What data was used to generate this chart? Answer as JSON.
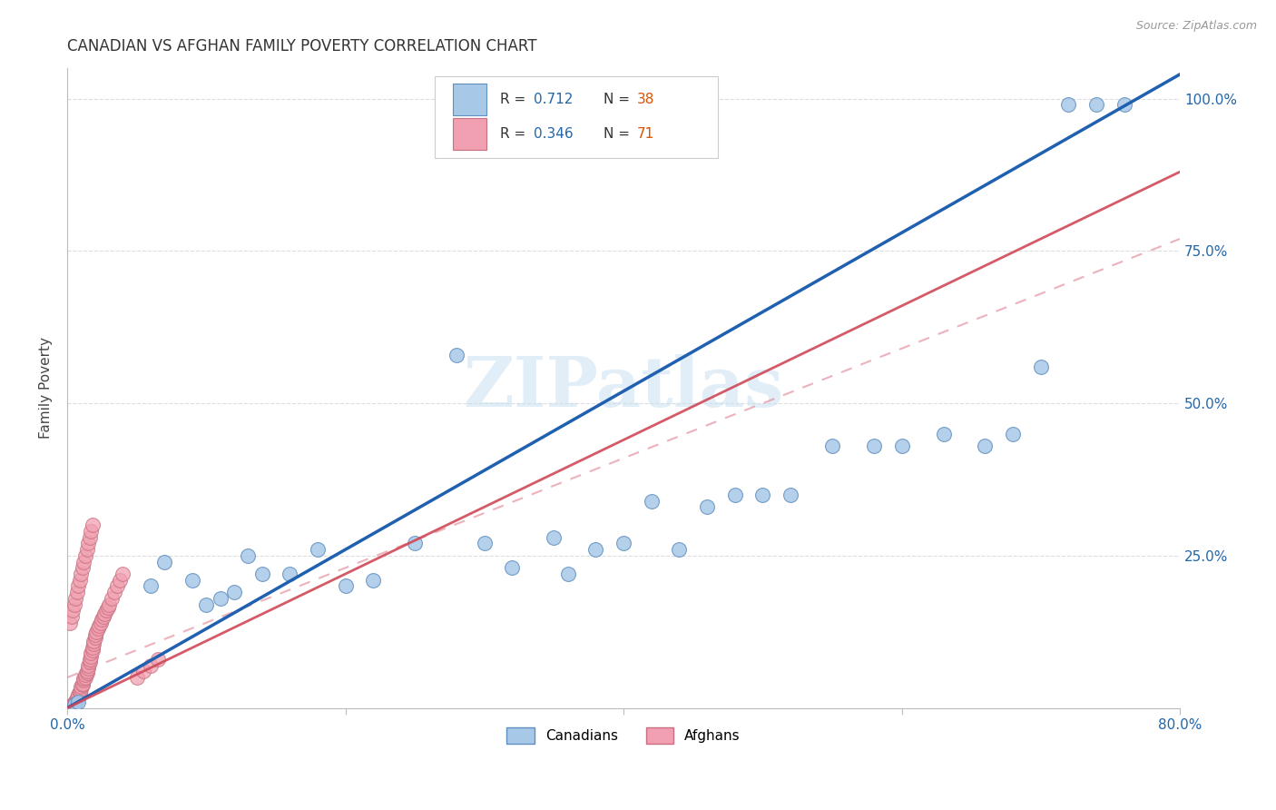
{
  "title": "CANADIAN VS AFGHAN FAMILY POVERTY CORRELATION CHART",
  "source": "Source: ZipAtlas.com",
  "ylabel": "Family Poverty",
  "watermark": "ZIPatlas",
  "legend_blue_label": "Canadians",
  "legend_pink_label": "Afghans",
  "R_blue": "0.712",
  "N_blue": "38",
  "R_pink": "0.346",
  "N_pink": "71",
  "blue_face": "#A8C8E8",
  "blue_edge": "#6090C0",
  "pink_face": "#F0A0B0",
  "pink_edge": "#C87080",
  "blue_line_color": "#2060B0",
  "pink_line_color": "#D04858",
  "pink_dash_color": "#E08090",
  "axis_label_color": "#2166AC",
  "grid_color": "#DDDDDD",
  "title_color": "#333333",
  "blue_text_color": "#2166AC",
  "orange_text_color": "#E05000",
  "legend_border_color": "#CCCCCC",
  "canadians_x": [
    0.005,
    0.008,
    0.06,
    0.1,
    0.12,
    0.07,
    0.09,
    0.14,
    0.11,
    0.16,
    0.2,
    0.13,
    0.22,
    0.18,
    0.25,
    0.28,
    0.3,
    0.32,
    0.35,
    0.36,
    0.38,
    0.4,
    0.42,
    0.44,
    0.46,
    0.48,
    0.5,
    0.52,
    0.55,
    0.58,
    0.6,
    0.63,
    0.66,
    0.68,
    0.7,
    0.72,
    0.74,
    0.76
  ],
  "canadians_y": [
    0.005,
    0.01,
    0.2,
    0.17,
    0.19,
    0.24,
    0.21,
    0.22,
    0.18,
    0.22,
    0.2,
    0.25,
    0.21,
    0.26,
    0.27,
    0.58,
    0.27,
    0.23,
    0.28,
    0.22,
    0.26,
    0.27,
    0.34,
    0.26,
    0.33,
    0.35,
    0.35,
    0.35,
    0.43,
    0.43,
    0.43,
    0.45,
    0.43,
    0.45,
    0.56,
    0.99,
    0.99,
    0.99
  ],
  "afghans_x": [
    0.002,
    0.003,
    0.004,
    0.005,
    0.005,
    0.006,
    0.006,
    0.007,
    0.007,
    0.008,
    0.008,
    0.009,
    0.009,
    0.01,
    0.01,
    0.011,
    0.011,
    0.012,
    0.012,
    0.013,
    0.013,
    0.014,
    0.014,
    0.015,
    0.015,
    0.016,
    0.016,
    0.017,
    0.017,
    0.018,
    0.018,
    0.019,
    0.019,
    0.02,
    0.02,
    0.021,
    0.022,
    0.023,
    0.024,
    0.025,
    0.026,
    0.027,
    0.028,
    0.029,
    0.03,
    0.032,
    0.034,
    0.036,
    0.038,
    0.04,
    0.002,
    0.003,
    0.004,
    0.005,
    0.006,
    0.007,
    0.008,
    0.009,
    0.01,
    0.011,
    0.012,
    0.013,
    0.014,
    0.015,
    0.016,
    0.017,
    0.018,
    0.05,
    0.055,
    0.06,
    0.065
  ],
  "afghans_y": [
    0.002,
    0.003,
    0.005,
    0.006,
    0.008,
    0.01,
    0.012,
    0.015,
    0.018,
    0.02,
    0.022,
    0.025,
    0.028,
    0.03,
    0.035,
    0.038,
    0.04,
    0.045,
    0.048,
    0.05,
    0.055,
    0.058,
    0.06,
    0.065,
    0.07,
    0.075,
    0.08,
    0.085,
    0.09,
    0.095,
    0.1,
    0.105,
    0.11,
    0.115,
    0.12,
    0.125,
    0.13,
    0.135,
    0.14,
    0.145,
    0.15,
    0.155,
    0.16,
    0.165,
    0.17,
    0.18,
    0.19,
    0.2,
    0.21,
    0.22,
    0.14,
    0.15,
    0.16,
    0.17,
    0.18,
    0.19,
    0.2,
    0.21,
    0.22,
    0.23,
    0.24,
    0.25,
    0.26,
    0.27,
    0.28,
    0.29,
    0.3,
    0.05,
    0.06,
    0.07,
    0.08
  ],
  "blue_slope": 1.3,
  "blue_intercept": 0.0,
  "pink_slope": 1.1,
  "pink_intercept": 0.0,
  "pink_dash_slope": 0.9,
  "pink_dash_intercept": 0.05,
  "xlim": [
    0.0,
    0.8
  ],
  "ylim": [
    0.0,
    1.05
  ],
  "xtick_positions": [
    0.0,
    0.2,
    0.4,
    0.6,
    0.8
  ],
  "ytick_positions": [
    0.0,
    0.25,
    0.5,
    0.75,
    1.0
  ],
  "right_yticklabels": [
    "",
    "25.0%",
    "50.0%",
    "75.0%",
    "100.0%"
  ]
}
